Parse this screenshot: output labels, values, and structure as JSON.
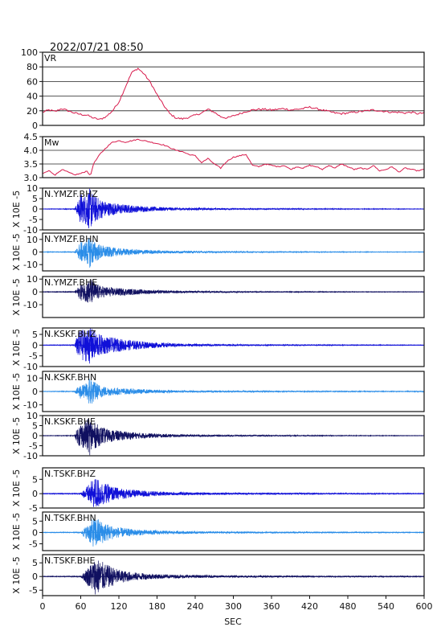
{
  "chart_data": {
    "type": "line",
    "timestamp": "2022/07/21 08:50",
    "xlabel": "SEC",
    "xlim": [
      0,
      600
    ],
    "xticks": [
      0,
      60,
      120,
      180,
      240,
      300,
      360,
      420,
      480,
      540,
      600
    ],
    "panels": [
      {
        "label": "VR",
        "kind": "line",
        "color": "#d81b4c",
        "ylim": [
          0,
          100
        ],
        "yticks": [
          0,
          20,
          40,
          60,
          80,
          100
        ],
        "ytick_labels": [
          "0",
          "20",
          "40",
          "60",
          "80",
          "100"
        ],
        "grid": true,
        "x": [
          0,
          10,
          20,
          30,
          40,
          50,
          60,
          70,
          80,
          90,
          100,
          110,
          120,
          130,
          140,
          150,
          160,
          170,
          180,
          190,
          200,
          210,
          220,
          230,
          240,
          250,
          260,
          270,
          280,
          290,
          300,
          310,
          320,
          330,
          340,
          350,
          360,
          370,
          380,
          390,
          400,
          410,
          420,
          430,
          440,
          450,
          460,
          470,
          480,
          490,
          500,
          510,
          520,
          530,
          540,
          550,
          560,
          570,
          580,
          590,
          600
        ],
        "y": [
          18,
          21,
          19,
          23,
          20,
          17,
          15,
          14,
          10,
          8,
          12,
          20,
          32,
          52,
          72,
          78,
          70,
          58,
          42,
          28,
          16,
          10,
          9,
          11,
          14,
          17,
          22,
          18,
          12,
          10,
          13,
          16,
          19,
          21,
          22,
          22,
          21,
          22,
          23,
          21,
          22,
          23,
          25,
          23,
          21,
          19,
          17,
          16,
          17,
          18,
          19,
          20,
          21,
          20,
          19,
          18,
          18,
          17,
          18,
          16,
          17
        ]
      },
      {
        "label": "Mw",
        "kind": "line",
        "color": "#d81b4c",
        "ylim": [
          3.0,
          4.5
        ],
        "yticks": [
          3.0,
          3.5,
          4.0,
          4.5
        ],
        "ytick_labels": [
          "3.0",
          "3.5",
          "4.0",
          "4.5"
        ],
        "grid": true,
        "x": [
          0,
          10,
          20,
          30,
          40,
          50,
          60,
          70,
          75,
          80,
          90,
          100,
          110,
          120,
          130,
          140,
          150,
          160,
          170,
          180,
          190,
          200,
          210,
          220,
          230,
          240,
          250,
          260,
          270,
          280,
          290,
          300,
          310,
          320,
          330,
          340,
          350,
          360,
          370,
          380,
          390,
          400,
          410,
          420,
          430,
          440,
          450,
          460,
          470,
          480,
          490,
          500,
          510,
          520,
          530,
          540,
          550,
          560,
          570,
          580,
          590,
          600
        ],
        "y": [
          3.15,
          3.25,
          3.1,
          3.3,
          3.2,
          3.1,
          3.15,
          3.25,
          3.05,
          3.5,
          3.85,
          4.1,
          4.3,
          4.35,
          4.3,
          4.35,
          4.4,
          4.35,
          4.3,
          4.25,
          4.2,
          4.1,
          4.0,
          3.95,
          3.85,
          3.8,
          3.55,
          3.7,
          3.5,
          3.35,
          3.6,
          3.75,
          3.8,
          3.85,
          3.45,
          3.4,
          3.5,
          3.45,
          3.4,
          3.45,
          3.3,
          3.4,
          3.35,
          3.45,
          3.4,
          3.3,
          3.45,
          3.35,
          3.5,
          3.4,
          3.3,
          3.35,
          3.3,
          3.45,
          3.25,
          3.3,
          3.4,
          3.2,
          3.35,
          3.3,
          3.25,
          3.3
        ]
      },
      {
        "label": "N.YMZF.BHZ",
        "kind": "wave",
        "color": "#1010d8",
        "ylim": [
          -10,
          10
        ],
        "yticks": [
          -10,
          -5,
          0,
          5,
          10
        ],
        "ytick_labels": [
          "-10",
          "-5",
          "0",
          "5",
          "10"
        ],
        "ylabel": "X 10E -5",
        "x": [
          0,
          50,
          55,
          60,
          65,
          70,
          75,
          80,
          90,
          100,
          120,
          150,
          180,
          220,
          280,
          350,
          450,
          550,
          600
        ],
        "y": [
          0.1,
          0.2,
          3,
          8,
          6,
          9,
          10,
          7,
          5,
          3.5,
          2.5,
          1.5,
          1,
          0.6,
          0.4,
          0.3,
          0.2,
          0.15,
          0.1
        ]
      },
      {
        "label": "N.YMZF.BHN",
        "kind": "wave",
        "color": "#2a8de8",
        "ylim": [
          -15,
          15
        ],
        "yticks": [
          -10,
          0,
          10
        ],
        "ytick_labels": [
          "-10",
          "0",
          "10"
        ],
        "ylabel": "X 10E -5",
        "x": [
          0,
          50,
          55,
          60,
          65,
          70,
          75,
          80,
          90,
          100,
          120,
          150,
          180,
          220,
          280,
          350,
          450,
          550,
          600
        ],
        "y": [
          0.2,
          0.3,
          4,
          9,
          7,
          10,
          13,
          9,
          6,
          4.5,
          3,
          2,
          1.3,
          0.9,
          0.6,
          0.4,
          0.3,
          0.2,
          0.2
        ]
      },
      {
        "label": "N.YMZF.BHE",
        "kind": "wave",
        "color": "#101060",
        "ylim": [
          -20,
          12
        ],
        "yticks": [
          -10,
          0,
          10
        ],
        "ytick_labels": [
          "-10",
          "0",
          "10"
        ],
        "ylabel": "X 10E -5",
        "x": [
          0,
          50,
          55,
          60,
          65,
          70,
          75,
          80,
          90,
          100,
          120,
          150,
          180,
          220,
          280,
          350,
          450,
          550,
          600
        ],
        "y": [
          0.2,
          0.3,
          3,
          7,
          6,
          9,
          11,
          8,
          5,
          4,
          3,
          2,
          1.3,
          0.9,
          0.6,
          0.4,
          0.3,
          0.2,
          0.2
        ]
      },
      {
        "label": "N.KSKF.BHZ",
        "kind": "wave",
        "color": "#1010d8",
        "ylim": [
          -10,
          8
        ],
        "yticks": [
          -10,
          -5,
          0,
          5
        ],
        "ytick_labels": [
          "-10",
          "-5",
          "0",
          "5"
        ],
        "ylabel": "X 10E -5",
        "x": [
          0,
          50,
          55,
          60,
          65,
          70,
          75,
          80,
          90,
          100,
          120,
          150,
          180,
          220,
          280,
          350,
          450,
          550,
          600
        ],
        "y": [
          0.1,
          0.2,
          5,
          8,
          7,
          8,
          9,
          7,
          5,
          4,
          3,
          2,
          1.2,
          0.7,
          0.4,
          0.3,
          0.2,
          0.15,
          0.1
        ]
      },
      {
        "label": "N.KSKF.BHN",
        "kind": "wave",
        "color": "#2a8de8",
        "ylim": [
          -15,
          15
        ],
        "yticks": [
          -10,
          0,
          10
        ],
        "ytick_labels": [
          "-10",
          "0",
          "10"
        ],
        "ylabel": "X 10E -5",
        "x": [
          0,
          50,
          55,
          60,
          65,
          70,
          75,
          80,
          90,
          100,
          120,
          150,
          180,
          220,
          280,
          350,
          450,
          550,
          600
        ],
        "y": [
          0.2,
          0.3,
          3,
          6,
          5,
          7,
          13,
          8,
          5,
          3.5,
          2.5,
          1.8,
          1.2,
          0.8,
          0.6,
          0.5,
          0.4,
          0.3,
          0.3
        ]
      },
      {
        "label": "N.KSKF.BHE",
        "kind": "wave",
        "color": "#101060",
        "ylim": [
          -10,
          10
        ],
        "yticks": [
          -10,
          -5,
          0,
          5,
          10
        ],
        "ytick_labels": [
          "-10",
          "-5",
          "0",
          "5",
          "10"
        ],
        "ylabel": "X 10E -5",
        "x": [
          0,
          50,
          55,
          60,
          65,
          70,
          75,
          80,
          90,
          100,
          120,
          150,
          180,
          220,
          280,
          350,
          450,
          550,
          600
        ],
        "y": [
          0.1,
          0.2,
          4,
          7,
          6,
          8,
          10,
          7,
          5,
          3.5,
          2.5,
          1.5,
          1,
          0.6,
          0.4,
          0.3,
          0.2,
          0.15,
          0.1
        ]
      },
      {
        "label": "N.TSKF.BHZ",
        "kind": "wave",
        "color": "#1010d8",
        "ylim": [
          -5,
          9
        ],
        "yticks": [
          -5,
          0,
          5
        ],
        "ytick_labels": [
          "-5",
          "0",
          "5"
        ],
        "ylabel": "X 10E -5",
        "x": [
          0,
          60,
          65,
          70,
          75,
          80,
          85,
          90,
          100,
          110,
          120,
          140,
          170,
          200,
          250,
          320,
          420,
          520,
          600
        ],
        "y": [
          0.1,
          0.2,
          1.5,
          2.5,
          4,
          5,
          6,
          4.5,
          3.5,
          2.5,
          2,
          1.4,
          0.9,
          0.6,
          0.4,
          0.3,
          0.25,
          0.2,
          0.15
        ]
      },
      {
        "label": "N.TSKF.BHN",
        "kind": "wave",
        "color": "#2a8de8",
        "ylim": [
          -8,
          9
        ],
        "yticks": [
          -5,
          0,
          5
        ],
        "ytick_labels": [
          "-5",
          "0",
          "5"
        ],
        "ylabel": "X 10E -5",
        "x": [
          0,
          60,
          65,
          70,
          75,
          80,
          85,
          90,
          100,
          110,
          120,
          140,
          170,
          200,
          250,
          320,
          420,
          520,
          600
        ],
        "y": [
          0.1,
          0.2,
          2,
          3,
          5,
          6.5,
          7,
          5.5,
          4,
          3,
          2.2,
          1.5,
          1,
          0.7,
          0.5,
          0.35,
          0.25,
          0.2,
          0.15
        ]
      },
      {
        "label": "N.TSKF.BHE",
        "kind": "wave",
        "color": "#101060",
        "ylim": [
          -7,
          8
        ],
        "yticks": [
          -5,
          0,
          5
        ],
        "ytick_labels": [
          "-5",
          "0",
          "5"
        ],
        "ylabel": "X 10E -5",
        "x": [
          0,
          60,
          65,
          70,
          75,
          80,
          85,
          90,
          100,
          110,
          120,
          140,
          170,
          200,
          250,
          320,
          420,
          520,
          600
        ],
        "y": [
          0.1,
          0.2,
          1.5,
          3,
          4.5,
          6,
          7,
          6,
          4.5,
          3.5,
          2.5,
          1.6,
          1,
          0.7,
          0.5,
          0.35,
          0.25,
          0.2,
          0.15
        ]
      }
    ]
  }
}
